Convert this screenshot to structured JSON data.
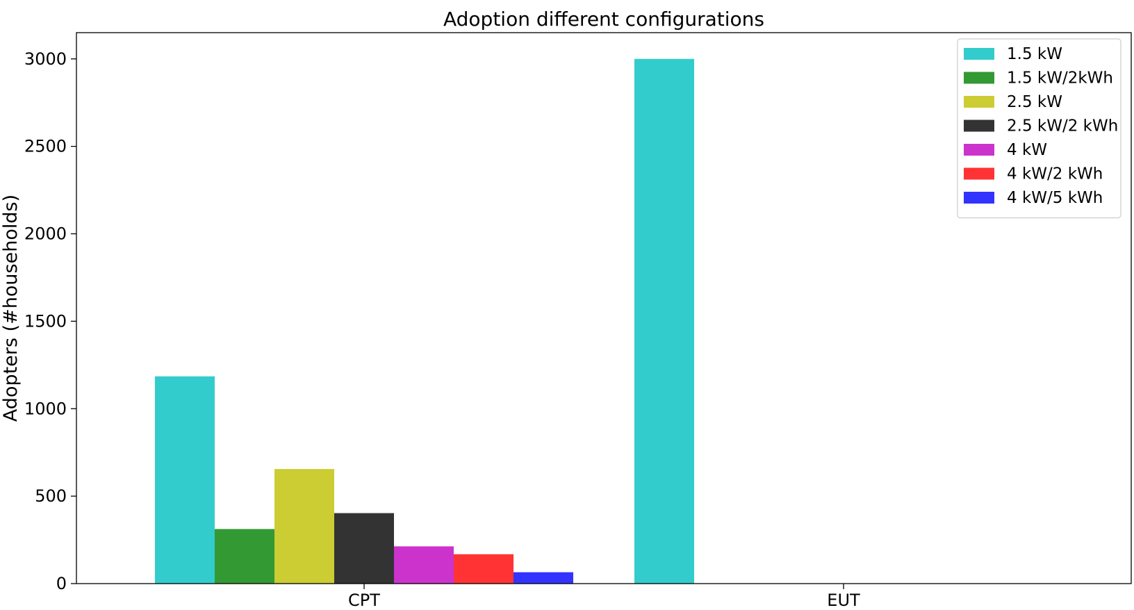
{
  "chart_data": {
    "type": "bar",
    "title": "Adoption different configurations",
    "xlabel": "",
    "ylabel": "Adopters (#households)",
    "categories": [
      "CPT",
      "EUT"
    ],
    "ylim": [
      0,
      3150
    ],
    "yticks": [
      0,
      500,
      1000,
      1500,
      2000,
      2500,
      3000
    ],
    "grid": false,
    "legend_position": "top-right",
    "series": [
      {
        "name": "1.5 kW",
        "color": "#33cccc",
        "values": [
          1185,
          3000
        ]
      },
      {
        "name": "1.5 kW/2kWh",
        "color": "#339933",
        "values": [
          312,
          0
        ]
      },
      {
        "name": "2.5 kW",
        "color": "#cccc33",
        "values": [
          655,
          0
        ]
      },
      {
        "name": "2.5 kW/2 kWh",
        "color": "#333333",
        "values": [
          403,
          0
        ]
      },
      {
        "name": "4 kW",
        "color": "#cc33cc",
        "values": [
          213,
          0
        ]
      },
      {
        "name": "4 kW/2 kWh",
        "color": "#ff3333",
        "values": [
          168,
          0
        ]
      },
      {
        "name": "4 kW/5 kWh",
        "color": "#3333ff",
        "values": [
          65,
          0
        ]
      }
    ]
  }
}
